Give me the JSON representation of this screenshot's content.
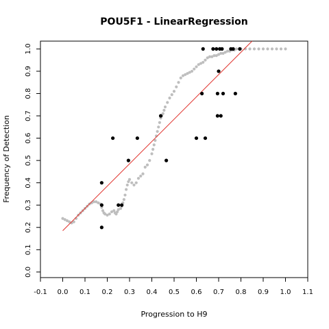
{
  "chart_data": {
    "type": "scatter",
    "title": "POU5F1 - LinearRegression",
    "xlabel": "Progression to H9",
    "ylabel": "Frequency of Detection",
    "xlim": [
      -0.1,
      1.1
    ],
    "ylim": [
      0.0,
      1.0
    ],
    "xticks": [
      "-0.1",
      "0.0",
      "0.1",
      "0.2",
      "0.3",
      "0.4",
      "0.5",
      "0.6",
      "0.7",
      "0.8",
      "0.9",
      "1.0",
      "1.1"
    ],
    "yticks": [
      "0.0",
      "0.1",
      "0.2",
      "0.3",
      "0.4",
      "0.5",
      "0.6",
      "0.7",
      "0.8",
      "0.9",
      "1.0"
    ],
    "grid": false,
    "colors": {
      "smooth": "#bebebe",
      "observed": "#000000",
      "fit": "#e0302a"
    },
    "smoothed_points": [
      [
        0.0,
        0.24
      ],
      [
        0.01,
        0.235
      ],
      [
        0.02,
        0.23
      ],
      [
        0.03,
        0.225
      ],
      [
        0.04,
        0.22
      ],
      [
        0.05,
        0.225
      ],
      [
        0.06,
        0.24
      ],
      [
        0.07,
        0.255
      ],
      [
        0.08,
        0.265
      ],
      [
        0.09,
        0.275
      ],
      [
        0.1,
        0.285
      ],
      [
        0.11,
        0.295
      ],
      [
        0.12,
        0.305
      ],
      [
        0.13,
        0.31
      ],
      [
        0.14,
        0.315
      ],
      [
        0.15,
        0.315
      ],
      [
        0.16,
        0.31
      ],
      [
        0.17,
        0.305
      ],
      [
        0.175,
        0.29
      ],
      [
        0.18,
        0.275
      ],
      [
        0.185,
        0.265
      ],
      [
        0.19,
        0.26
      ],
      [
        0.2,
        0.255
      ],
      [
        0.21,
        0.26
      ],
      [
        0.22,
        0.27
      ],
      [
        0.23,
        0.275
      ],
      [
        0.235,
        0.265
      ],
      [
        0.24,
        0.26
      ],
      [
        0.245,
        0.27
      ],
      [
        0.25,
        0.28
      ],
      [
        0.26,
        0.285
      ],
      [
        0.265,
        0.295
      ],
      [
        0.27,
        0.31
      ],
      [
        0.275,
        0.325
      ],
      [
        0.28,
        0.345
      ],
      [
        0.285,
        0.37
      ],
      [
        0.29,
        0.39
      ],
      [
        0.295,
        0.405
      ],
      [
        0.3,
        0.415
      ],
      [
        0.31,
        0.4
      ],
      [
        0.32,
        0.39
      ],
      [
        0.33,
        0.4
      ],
      [
        0.34,
        0.42
      ],
      [
        0.35,
        0.43
      ],
      [
        0.36,
        0.44
      ],
      [
        0.37,
        0.47
      ],
      [
        0.38,
        0.48
      ],
      [
        0.39,
        0.5
      ],
      [
        0.4,
        0.53
      ],
      [
        0.405,
        0.55
      ],
      [
        0.41,
        0.57
      ],
      [
        0.415,
        0.59
      ],
      [
        0.42,
        0.61
      ],
      [
        0.425,
        0.63
      ],
      [
        0.43,
        0.65
      ],
      [
        0.435,
        0.67
      ],
      [
        0.44,
        0.69
      ],
      [
        0.445,
        0.7
      ],
      [
        0.45,
        0.71
      ],
      [
        0.455,
        0.725
      ],
      [
        0.46,
        0.74
      ],
      [
        0.47,
        0.76
      ],
      [
        0.48,
        0.78
      ],
      [
        0.49,
        0.795
      ],
      [
        0.5,
        0.81
      ],
      [
        0.51,
        0.83
      ],
      [
        0.52,
        0.85
      ],
      [
        0.53,
        0.87
      ],
      [
        0.54,
        0.88
      ],
      [
        0.55,
        0.885
      ],
      [
        0.56,
        0.89
      ],
      [
        0.57,
        0.895
      ],
      [
        0.58,
        0.9
      ],
      [
        0.59,
        0.91
      ],
      [
        0.6,
        0.92
      ],
      [
        0.61,
        0.93
      ],
      [
        0.62,
        0.935
      ],
      [
        0.63,
        0.94
      ],
      [
        0.64,
        0.95
      ],
      [
        0.65,
        0.96
      ],
      [
        0.66,
        0.965
      ],
      [
        0.67,
        0.965
      ],
      [
        0.68,
        0.97
      ],
      [
        0.69,
        0.97
      ],
      [
        0.7,
        0.975
      ],
      [
        0.71,
        0.98
      ],
      [
        0.72,
        0.98
      ],
      [
        0.73,
        0.985
      ],
      [
        0.74,
        0.99
      ],
      [
        0.75,
        0.99
      ],
      [
        0.76,
        0.995
      ],
      [
        0.77,
        0.995
      ],
      [
        0.78,
        1.0
      ],
      [
        0.8,
        1.0
      ],
      [
        0.82,
        1.0
      ],
      [
        0.84,
        1.0
      ],
      [
        0.86,
        1.0
      ],
      [
        0.88,
        1.0
      ],
      [
        0.9,
        1.0
      ],
      [
        0.92,
        1.0
      ],
      [
        0.94,
        1.0
      ],
      [
        0.96,
        1.0
      ],
      [
        0.98,
        1.0
      ],
      [
        1.0,
        1.0
      ]
    ],
    "observed_points": [
      [
        0.175,
        0.4
      ],
      [
        0.175,
        0.3
      ],
      [
        0.175,
        0.2
      ],
      [
        0.225,
        0.6
      ],
      [
        0.25,
        0.3
      ],
      [
        0.265,
        0.3
      ],
      [
        0.295,
        0.5
      ],
      [
        0.335,
        0.6
      ],
      [
        0.44,
        0.7
      ],
      [
        0.465,
        0.5
      ],
      [
        0.6,
        0.6
      ],
      [
        0.625,
        0.8
      ],
      [
        0.63,
        1.0
      ],
      [
        0.64,
        0.6
      ],
      [
        0.675,
        1.0
      ],
      [
        0.69,
        1.0
      ],
      [
        0.695,
        0.8
      ],
      [
        0.695,
        0.7
      ],
      [
        0.7,
        0.9
      ],
      [
        0.705,
        1.0
      ],
      [
        0.71,
        0.7
      ],
      [
        0.715,
        1.0
      ],
      [
        0.72,
        0.8
      ],
      [
        0.755,
        1.0
      ],
      [
        0.765,
        1.0
      ],
      [
        0.775,
        0.8
      ],
      [
        0.795,
        1.0
      ]
    ],
    "fit_line": {
      "intercept": 0.185,
      "slope": 1.0,
      "x_from": 0.0,
      "x_to": 0.85
    }
  }
}
